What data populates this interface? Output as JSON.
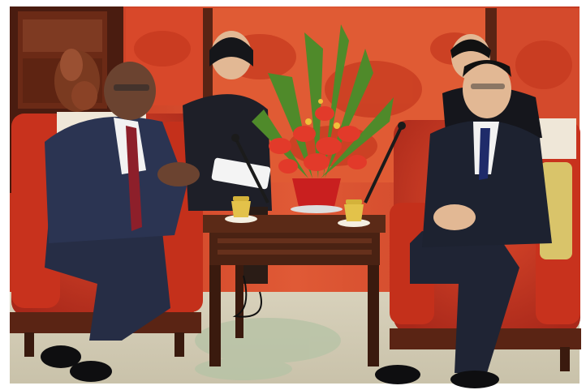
{
  "scene": {
    "colors": {
      "border": "#ffffff",
      "wall_red": "#d9472b",
      "wall_dark": "#7a2a18",
      "panel_frame": "#5a2414",
      "chair_red": "#d23a22",
      "chair_shadow": "#9b2614",
      "table_wood": "#5b2a17",
      "table_dark": "#3a1a0e",
      "carpet": "#cfc8b2",
      "carpet_pattern": "#b9c0a8",
      "suit_navy": "#2a3350",
      "suit_dark": "#1d2230",
      "skin_dark": "#6b4330",
      "skin_light": "#e2b894",
      "shirt_white": "#f2f2f2",
      "tie_red": "#8d1f2a",
      "tie_blue": "#1f2b6a",
      "flower_red": "#e23a2a",
      "leaf_green": "#4f8a2a",
      "vase_red": "#c91f1f",
      "cup_gold": "#e3c24a",
      "cup_white": "#f4efe1",
      "cushion_gold": "#d9c46a"
    }
  }
}
